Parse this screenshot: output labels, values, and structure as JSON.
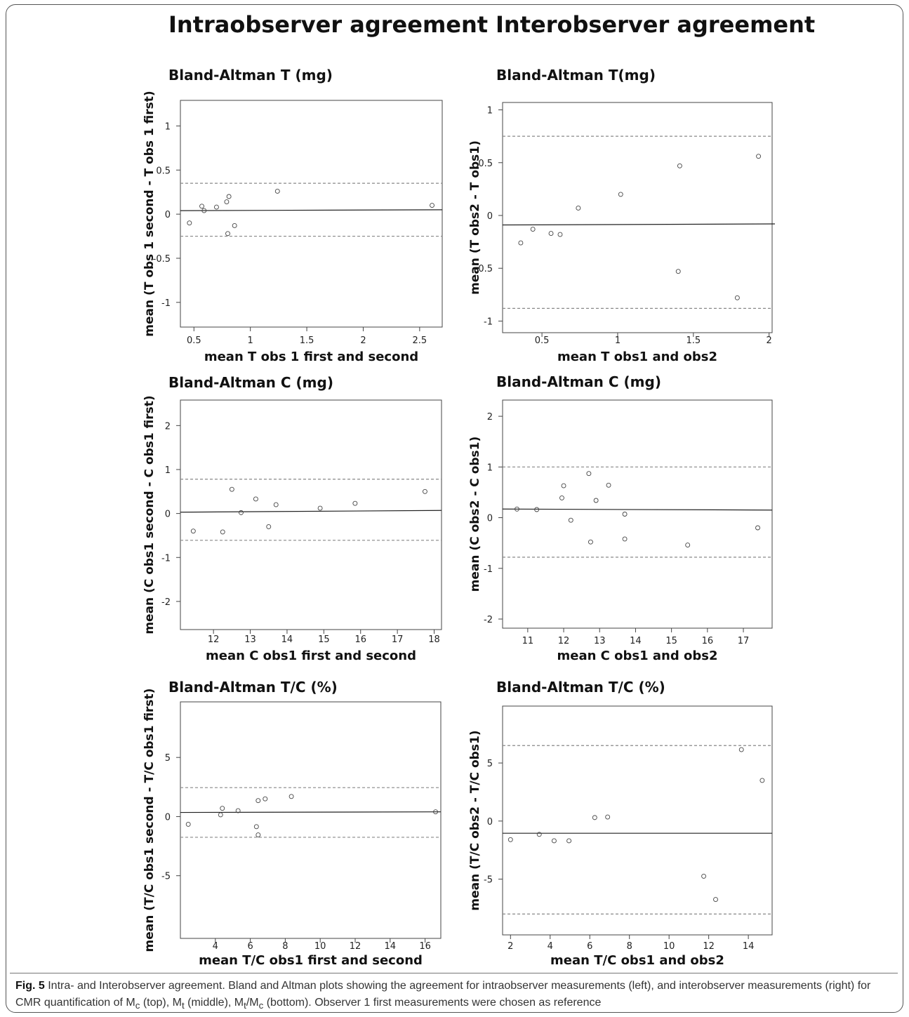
{
  "headers": {
    "left": "Intraobserver agreement",
    "right": "Interobserver agreement"
  },
  "caption": {
    "label": "Fig. 5",
    "text_html": "Intra- and Interobserver agreement. Bland and Altman plots showing the agreement for intraobserver measurements (left), and interobserver measurements (right) for CMR quantification of M<sub>c</sub> (top), M<sub>t</sub> (middle), M<sub>t</sub>/M<sub>c</sub> (bottom). Observer 1 first measurements were chosen as reference"
  },
  "chart_data": [
    {
      "id": "intra-T",
      "type": "scatter",
      "title": "Bland-Altman T (mg)",
      "xlabel": "mean T obs 1 first and second",
      "ylabel": "mean (T obs 1 second - T obs 1 first)",
      "xlim": [
        0.38,
        2.7
      ],
      "ylim": [
        -1.28,
        1.29
      ],
      "xticks": [
        0.5,
        1,
        1.5,
        2,
        2.5
      ],
      "xtick_labels": [
        "0.5",
        "1",
        "1.5",
        "2",
        "2.5"
      ],
      "yticks": [
        -1,
        -0.5,
        0,
        0.5,
        1
      ],
      "ytick_labels": [
        "-1",
        "-0.5",
        "0",
        "0.5",
        "1"
      ],
      "mean_line": [
        0.04,
        0.05
      ],
      "upper_limit": 0.35,
      "lower_limit": -0.25,
      "points": [
        [
          0.46,
          -0.1
        ],
        [
          0.57,
          0.09
        ],
        [
          0.59,
          0.04
        ],
        [
          0.7,
          0.08
        ],
        [
          0.79,
          0.14
        ],
        [
          0.81,
          0.2
        ],
        [
          0.8,
          -0.22
        ],
        [
          0.86,
          -0.13
        ],
        [
          1.24,
          0.26
        ],
        [
          2.61,
          0.1
        ]
      ]
    },
    {
      "id": "inter-T",
      "type": "scatter",
      "title": "Bland-Altman T(mg)",
      "xlabel": "mean T obs1 and obs2",
      "ylabel": "mean (T obs2 - T obs1)",
      "xlim": [
        0.24,
        2.02
      ],
      "ylim": [
        -1.11,
        1.07
      ],
      "xticks": [
        0.5,
        1,
        1.5,
        2
      ],
      "xtick_labels": [
        "0.5",
        "1",
        "1.5",
        "2"
      ],
      "yticks": [
        -1,
        -0.5,
        0,
        0.5,
        1
      ],
      "ytick_labels": [
        "-1",
        "-0.5",
        "0",
        "0.5",
        "1"
      ],
      "mean_line": [
        -0.09,
        -0.08
      ],
      "upper_limit": 0.75,
      "lower_limit": -0.88,
      "points": [
        [
          0.36,
          -0.26
        ],
        [
          0.44,
          -0.13
        ],
        [
          0.56,
          -0.17
        ],
        [
          0.62,
          -0.18
        ],
        [
          0.74,
          0.07
        ],
        [
          1.02,
          0.2
        ],
        [
          1.41,
          0.47
        ],
        [
          1.4,
          -0.53
        ],
        [
          1.79,
          -0.78
        ],
        [
          1.93,
          0.56
        ]
      ]
    },
    {
      "id": "intra-C",
      "type": "scatter",
      "title": "Bland-Altman C (mg)",
      "xlabel": "mean C obs1 first and second",
      "ylabel": "mean (C obs1 second - C obs1 first)",
      "xlim": [
        11.1,
        18.2
      ],
      "ylim": [
        -2.64,
        2.58
      ],
      "xticks": [
        12,
        13,
        14,
        15,
        16,
        17,
        18
      ],
      "xtick_labels": [
        "12",
        "13",
        "14",
        "15",
        "16",
        "17",
        "18"
      ],
      "yticks": [
        -2,
        -1,
        0,
        1,
        2
      ],
      "ytick_labels": [
        "-2",
        "-1",
        "0",
        "1",
        "2"
      ],
      "mean_line": [
        0.03,
        0.07
      ],
      "upper_limit": 0.78,
      "lower_limit": -0.61,
      "points": [
        [
          11.45,
          -0.4
        ],
        [
          12.25,
          -0.42
        ],
        [
          12.5,
          0.55
        ],
        [
          12.75,
          0.02
        ],
        [
          13.15,
          0.33
        ],
        [
          13.5,
          -0.3
        ],
        [
          13.7,
          0.2
        ],
        [
          14.9,
          0.12
        ],
        [
          15.85,
          0.23
        ],
        [
          17.75,
          0.5
        ]
      ]
    },
    {
      "id": "inter-C",
      "type": "scatter",
      "title": "Bland-Altman C (mg)",
      "xlabel": "mean C obs1 and obs2",
      "ylabel": "mean (C obs2 - C obs1)",
      "xlim": [
        10.3,
        17.8
      ],
      "ylim": [
        -2.18,
        2.32
      ],
      "xticks": [
        11,
        12,
        13,
        14,
        15,
        16,
        17
      ],
      "xtick_labels": [
        "11",
        "12",
        "13",
        "14",
        "15",
        "16",
        "17"
      ],
      "yticks": [
        -2,
        -1,
        0,
        1,
        2
      ],
      "ytick_labels": [
        "-2",
        "-1",
        "0",
        "1",
        "2"
      ],
      "mean_line": [
        0.17,
        0.15
      ],
      "upper_limit": 1.0,
      "lower_limit": -0.78,
      "points": [
        [
          10.7,
          0.17
        ],
        [
          11.25,
          0.16
        ],
        [
          11.95,
          0.39
        ],
        [
          12.0,
          0.63
        ],
        [
          12.2,
          -0.05
        ],
        [
          12.7,
          0.87
        ],
        [
          12.75,
          -0.48
        ],
        [
          12.9,
          0.34
        ],
        [
          13.25,
          0.64
        ],
        [
          13.7,
          0.07
        ],
        [
          13.7,
          -0.42
        ],
        [
          15.45,
          -0.54
        ],
        [
          17.4,
          -0.2
        ]
      ]
    },
    {
      "id": "intra-TC",
      "type": "scatter",
      "title": "Bland-Altman T/C (%)",
      "xlabel": "mean T/C obs1 first and second",
      "ylabel": "mean (T/C obs1 second - T/C obs1 first)",
      "xlim": [
        2.0,
        16.9
      ],
      "ylim": [
        -10.3,
        9.7
      ],
      "xticks": [
        4,
        6,
        8,
        10,
        12,
        14,
        16
      ],
      "xtick_labels": [
        "4",
        "6",
        "8",
        "10",
        "12",
        "14",
        "16"
      ],
      "yticks": [
        -5,
        0,
        5
      ],
      "ytick_labels": [
        "-5",
        "0",
        "5"
      ],
      "mean_line": [
        0.35,
        0.4
      ],
      "upper_limit": 2.45,
      "lower_limit": -1.75,
      "points": [
        [
          2.45,
          -0.65
        ],
        [
          4.3,
          0.15
        ],
        [
          4.4,
          0.7
        ],
        [
          5.3,
          0.5
        ],
        [
          6.35,
          -0.85
        ],
        [
          6.45,
          1.35
        ],
        [
          6.45,
          -1.55
        ],
        [
          6.85,
          1.5
        ],
        [
          8.35,
          1.7
        ],
        [
          16.6,
          0.4
        ]
      ]
    },
    {
      "id": "inter-TC",
      "type": "scatter",
      "title": "Bland-Altman T/C (%)",
      "xlabel": "mean T/C obs1 and obs2",
      "ylabel": "mean (T/C obs2 - T/C obs1)",
      "xlim": [
        1.6,
        15.2
      ],
      "ylim": [
        -9.8,
        9.9
      ],
      "xticks": [
        2,
        4,
        6,
        8,
        10,
        12,
        14
      ],
      "xtick_labels": [
        "2",
        "4",
        "6",
        "8",
        "10",
        "12",
        "14"
      ],
      "yticks": [
        -5,
        0,
        5
      ],
      "ytick_labels": [
        "-5",
        "0",
        "5"
      ],
      "mean_line": [
        -1.05,
        -1.05
      ],
      "upper_limit": 6.5,
      "lower_limit": -8.0,
      "points": [
        [
          2.0,
          -1.6
        ],
        [
          3.45,
          -1.15
        ],
        [
          4.2,
          -1.7
        ],
        [
          4.95,
          -1.7
        ],
        [
          6.25,
          0.3
        ],
        [
          6.9,
          0.35
        ],
        [
          11.75,
          -4.75
        ],
        [
          12.35,
          -6.75
        ],
        [
          13.65,
          6.15
        ],
        [
          14.7,
          3.5
        ]
      ]
    }
  ]
}
